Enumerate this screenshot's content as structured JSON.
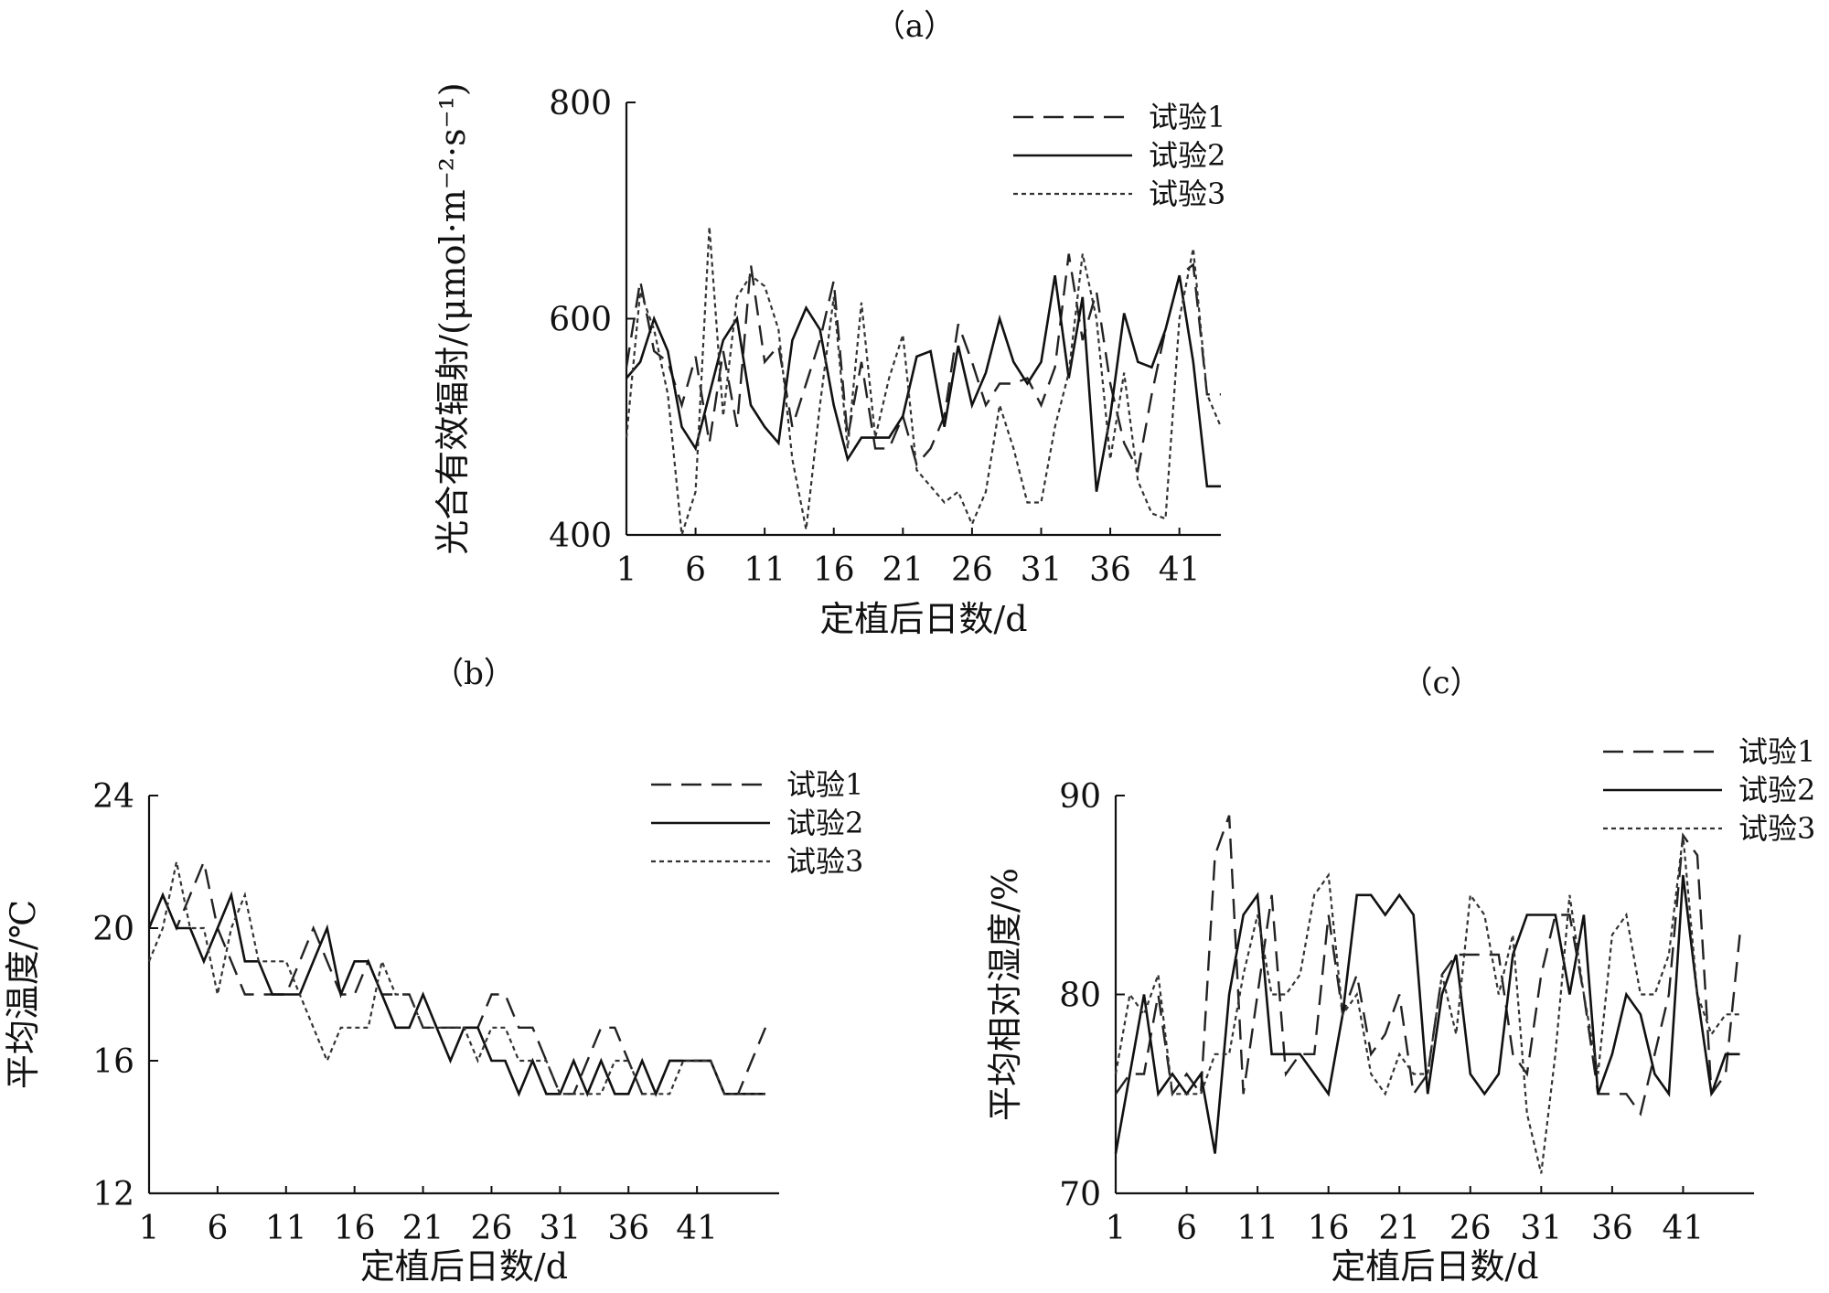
{
  "chart_data": [
    {
      "type": "line",
      "title": "（a）",
      "xlabel": "定植后日数/d",
      "ylabel": "光合有效辐射/(μmol·m⁻²·s⁻¹)",
      "ylim": [
        400,
        800
      ],
      "yticks": [
        400,
        600,
        800
      ],
      "xlim": [
        1,
        44
      ],
      "xticks": [
        1,
        6,
        11,
        16,
        21,
        26,
        31,
        36,
        41
      ],
      "legend_position": "top-right",
      "grid": false,
      "x": [
        1,
        2,
        3,
        4,
        5,
        6,
        7,
        8,
        9,
        10,
        11,
        12,
        13,
        14,
        15,
        16,
        17,
        18,
        19,
        20,
        21,
        22,
        23,
        24,
        25,
        26,
        27,
        28,
        29,
        30,
        31,
        32,
        33,
        34,
        35,
        36,
        37,
        38,
        39,
        40,
        41,
        42,
        43,
        44
      ],
      "series": [
        {
          "name": "试验1",
          "values": [
            555,
            635,
            570,
            560,
            520,
            565,
            485,
            570,
            500,
            650,
            560,
            575,
            500,
            540,
            580,
            635,
            490,
            560,
            480,
            480,
            510,
            465,
            480,
            510,
            595,
            560,
            520,
            540,
            540,
            545,
            520,
            555,
            660,
            580,
            625,
            540,
            485,
            460,
            530,
            590,
            640,
            650,
            530,
            530
          ]
        },
        {
          "name": "试验2",
          "values": [
            545,
            560,
            600,
            570,
            500,
            480,
            530,
            580,
            600,
            520,
            500,
            485,
            580,
            610,
            590,
            520,
            470,
            490,
            490,
            490,
            510,
            565,
            570,
            500,
            575,
            520,
            550,
            600,
            560,
            540,
            560,
            640,
            545,
            620,
            440,
            510,
            605,
            560,
            555,
            590,
            640,
            560,
            445,
            445
          ]
        },
        {
          "name": "试验3",
          "values": [
            490,
            625,
            590,
            530,
            400,
            440,
            685,
            510,
            620,
            640,
            630,
            590,
            470,
            405,
            520,
            620,
            480,
            615,
            490,
            545,
            585,
            460,
            445,
            430,
            440,
            410,
            440,
            520,
            480,
            430,
            430,
            500,
            550,
            660,
            600,
            470,
            550,
            450,
            420,
            415,
            600,
            665,
            530,
            500
          ]
        }
      ]
    },
    {
      "type": "line",
      "title": "（b）",
      "xlabel": "定植后日数/d",
      "ylabel": "平均温度/℃",
      "ylim": [
        12,
        24
      ],
      "yticks": [
        12,
        16,
        20,
        24
      ],
      "xlim": [
        1,
        47
      ],
      "xticks": [
        1,
        6,
        11,
        16,
        21,
        26,
        31,
        36,
        41
      ],
      "legend_position": "top-right",
      "grid": false,
      "x": [
        1,
        2,
        3,
        4,
        5,
        6,
        7,
        8,
        9,
        10,
        11,
        12,
        13,
        14,
        15,
        16,
        17,
        18,
        19,
        20,
        21,
        22,
        23,
        24,
        25,
        26,
        27,
        28,
        29,
        30,
        31,
        32,
        33,
        34,
        35,
        36,
        37,
        38,
        39,
        40,
        41,
        42,
        43,
        44,
        45,
        46
      ],
      "series": [
        {
          "name": "试验1",
          "values": [
            20,
            21,
            20,
            21,
            22,
            20,
            19,
            18,
            18,
            18,
            18,
            19,
            20,
            19,
            18,
            18,
            19,
            18,
            18,
            18,
            17,
            17,
            17,
            17,
            17,
            18,
            18,
            17,
            17,
            16,
            15,
            15,
            16,
            17,
            17,
            16,
            15,
            15,
            16,
            16,
            16,
            16,
            15,
            15,
            16,
            17
          ]
        },
        {
          "name": "试验2",
          "values": [
            20,
            21,
            20,
            20,
            19,
            20,
            21,
            19,
            19,
            18,
            18,
            18,
            19,
            20,
            18,
            19,
            19,
            18,
            17,
            17,
            18,
            17,
            16,
            17,
            17,
            16,
            16,
            15,
            16,
            15,
            15,
            16,
            15,
            16,
            15,
            15,
            16,
            15,
            16,
            16,
            16,
            16,
            15,
            15,
            15,
            15
          ]
        },
        {
          "name": "试验3",
          "values": [
            19,
            20,
            22,
            20,
            20,
            18,
            20,
            21,
            19,
            19,
            19,
            18,
            17,
            16,
            17,
            17,
            17,
            19,
            18,
            18,
            17,
            17,
            17,
            17,
            16,
            17,
            17,
            16,
            16,
            16,
            15,
            15,
            15,
            15,
            16,
            16,
            15,
            15,
            15,
            16,
            16,
            16,
            15,
            15,
            15,
            15
          ]
        }
      ]
    },
    {
      "type": "line",
      "title": "（c）",
      "xlabel": "定植后日数/d",
      "ylabel": "平均相对湿度/%",
      "ylim": [
        70,
        90
      ],
      "yticks": [
        70,
        80,
        90
      ],
      "xlim": [
        1,
        46
      ],
      "xticks": [
        1,
        6,
        11,
        16,
        21,
        26,
        31,
        36,
        41
      ],
      "legend_position": "top-right",
      "grid": false,
      "x": [
        1,
        2,
        3,
        4,
        5,
        6,
        7,
        8,
        9,
        10,
        11,
        12,
        13,
        14,
        15,
        16,
        17,
        18,
        19,
        20,
        21,
        22,
        23,
        24,
        25,
        26,
        27,
        28,
        29,
        30,
        31,
        32,
        33,
        34,
        35,
        36,
        37,
        38,
        39,
        40,
        41,
        42,
        43,
        44,
        45
      ],
      "series": [
        {
          "name": "试验1",
          "values": [
            75,
            76,
            76,
            80,
            75,
            76,
            75,
            87,
            89,
            75,
            80,
            85,
            76,
            77,
            77,
            84,
            79,
            81,
            77,
            78,
            80,
            75,
            76,
            81,
            82,
            82,
            82,
            82,
            77,
            76,
            81,
            84,
            84,
            80,
            75,
            75,
            75,
            74,
            77,
            80,
            88,
            87,
            75,
            76,
            83
          ]
        },
        {
          "name": "试验2",
          "values": [
            72,
            76,
            80,
            75,
            76,
            75,
            76,
            72,
            80,
            84,
            85,
            77,
            77,
            77,
            76,
            75,
            79,
            85,
            85,
            84,
            85,
            84,
            75,
            80,
            82,
            76,
            75,
            76,
            82,
            84,
            84,
            84,
            80,
            84,
            75,
            77,
            80,
            79,
            76,
            75,
            86,
            80,
            75,
            77,
            77
          ]
        },
        {
          "name": "试验3",
          "values": [
            76,
            80,
            79,
            81,
            75,
            75,
            75,
            77,
            77,
            81,
            84,
            80,
            80,
            81,
            85,
            86,
            79,
            80,
            76,
            75,
            77,
            76,
            76,
            81,
            78,
            85,
            84,
            80,
            83,
            74,
            71,
            77,
            85,
            80,
            76,
            83,
            84,
            80,
            80,
            82,
            88,
            80,
            78,
            79,
            79
          ]
        }
      ]
    }
  ]
}
